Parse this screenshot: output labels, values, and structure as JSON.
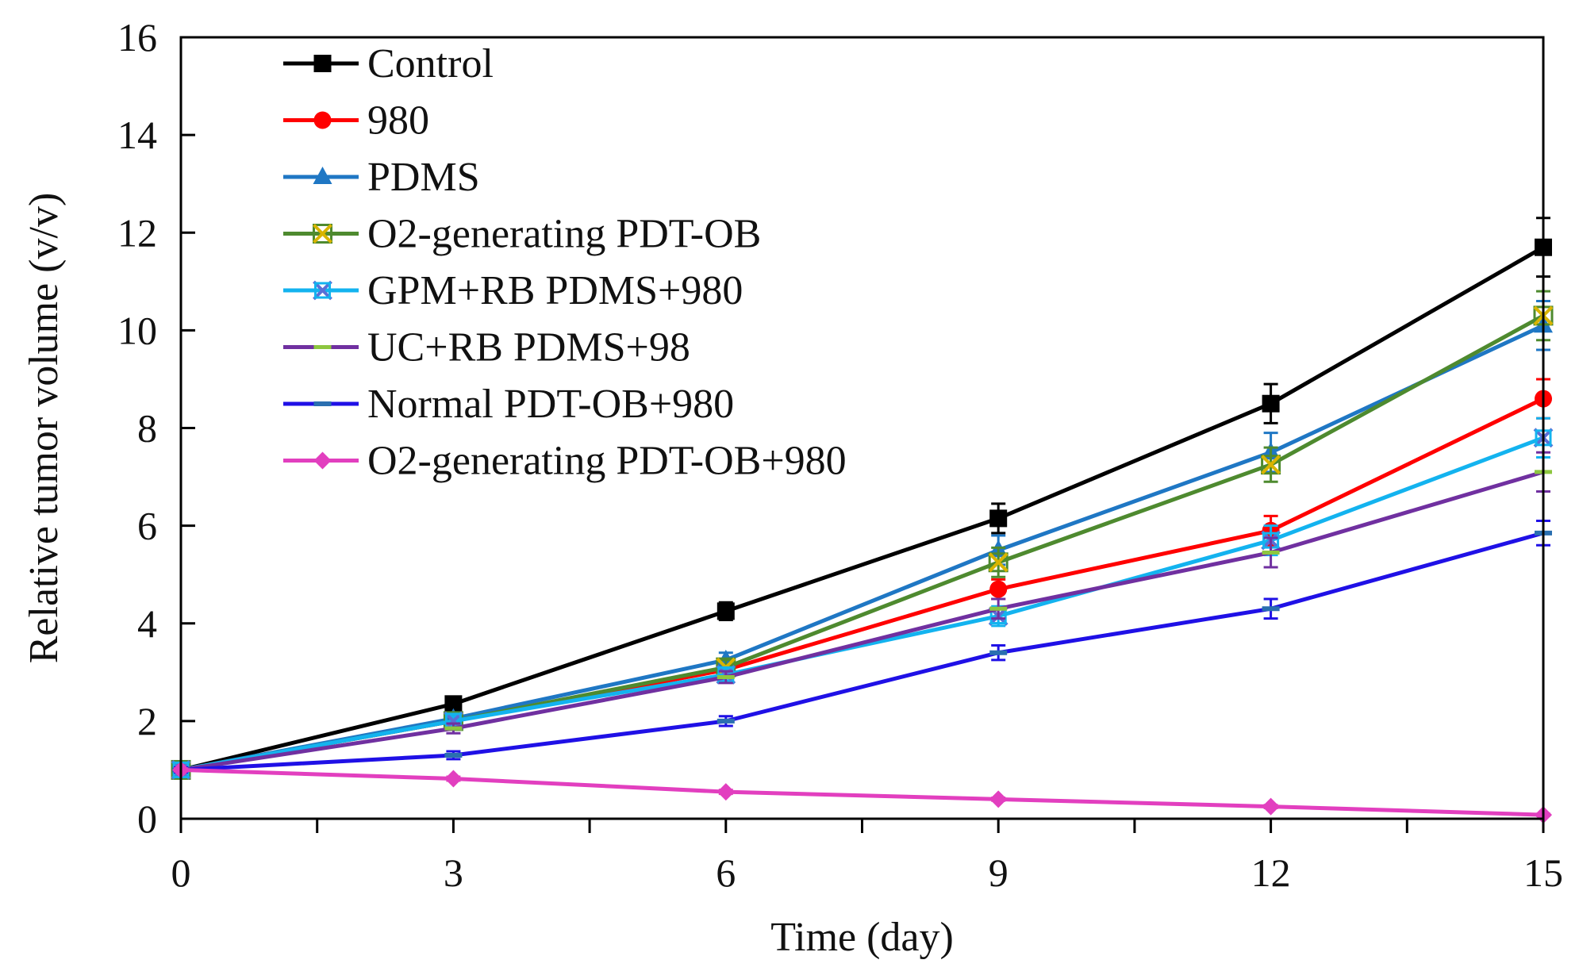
{
  "chart_data": {
    "type": "line",
    "title": "",
    "xlabel": "Time (day)",
    "ylabel": "Relative tumor volume (v/v)",
    "x": [
      0,
      3,
      6,
      9,
      12,
      15
    ],
    "xlim": [
      0,
      15
    ],
    "ylim": [
      0,
      16
    ],
    "xticks": [
      "0",
      "3",
      "6",
      "9",
      "12",
      "15"
    ],
    "yticks": [
      "0",
      "2",
      "4",
      "6",
      "8",
      "10",
      "12",
      "14",
      "16"
    ],
    "grid": false,
    "legend_position": "top-left",
    "series": [
      {
        "name": "Control",
        "color": "#000000",
        "marker": "square",
        "values": [
          1.0,
          2.35,
          4.25,
          6.15,
          8.5,
          11.7
        ],
        "errors": [
          0.05,
          0.12,
          0.18,
          0.3,
          0.4,
          0.6
        ]
      },
      {
        "name": "980",
        "color": "#ff0000",
        "marker": "circle",
        "values": [
          1.0,
          2.0,
          3.05,
          4.7,
          5.9,
          8.6
        ],
        "errors": [
          0.05,
          0.1,
          0.15,
          0.2,
          0.3,
          0.4
        ]
      },
      {
        "name": "PDMS",
        "color": "#1f77c4",
        "marker": "triangle",
        "values": [
          1.0,
          2.05,
          3.25,
          5.5,
          7.5,
          10.1
        ],
        "errors": [
          0.05,
          0.1,
          0.15,
          0.3,
          0.4,
          0.5
        ]
      },
      {
        "name": "O2-generating PDT-OB",
        "color": "#4e8a2f",
        "marker": "x-square",
        "values": [
          1.0,
          2.0,
          3.1,
          5.25,
          7.25,
          10.3
        ],
        "errors": [
          0.05,
          0.1,
          0.15,
          0.3,
          0.35,
          0.5
        ]
      },
      {
        "name": "GPM+RB PDMS+980",
        "color": "#13b3ef",
        "marker": "asterisk",
        "values": [
          1.0,
          2.0,
          2.95,
          4.15,
          5.7,
          7.8
        ],
        "errors": [
          0.05,
          0.1,
          0.12,
          0.2,
          0.3,
          0.4
        ]
      },
      {
        "name": "UC+RB PDMS+98",
        "color": "#7030a0",
        "marker": "dash",
        "values": [
          1.0,
          1.85,
          2.9,
          4.3,
          5.45,
          7.1
        ],
        "errors": [
          0.05,
          0.1,
          0.12,
          0.2,
          0.3,
          0.4
        ]
      },
      {
        "name": "Normal PDT-OB+980",
        "color": "#1f10e6",
        "marker": "hbar",
        "values": [
          1.0,
          1.3,
          2.0,
          3.4,
          4.3,
          5.85
        ],
        "errors": [
          0.05,
          0.08,
          0.1,
          0.15,
          0.2,
          0.25
        ]
      },
      {
        "name": "O2-generating PDT-OB+980",
        "color": "#e23fbf",
        "marker": "diamond",
        "values": [
          1.0,
          0.82,
          0.55,
          0.4,
          0.25,
          0.08
        ],
        "errors": [
          0.03,
          0.04,
          0.04,
          0.03,
          0.03,
          0.02
        ]
      }
    ]
  }
}
